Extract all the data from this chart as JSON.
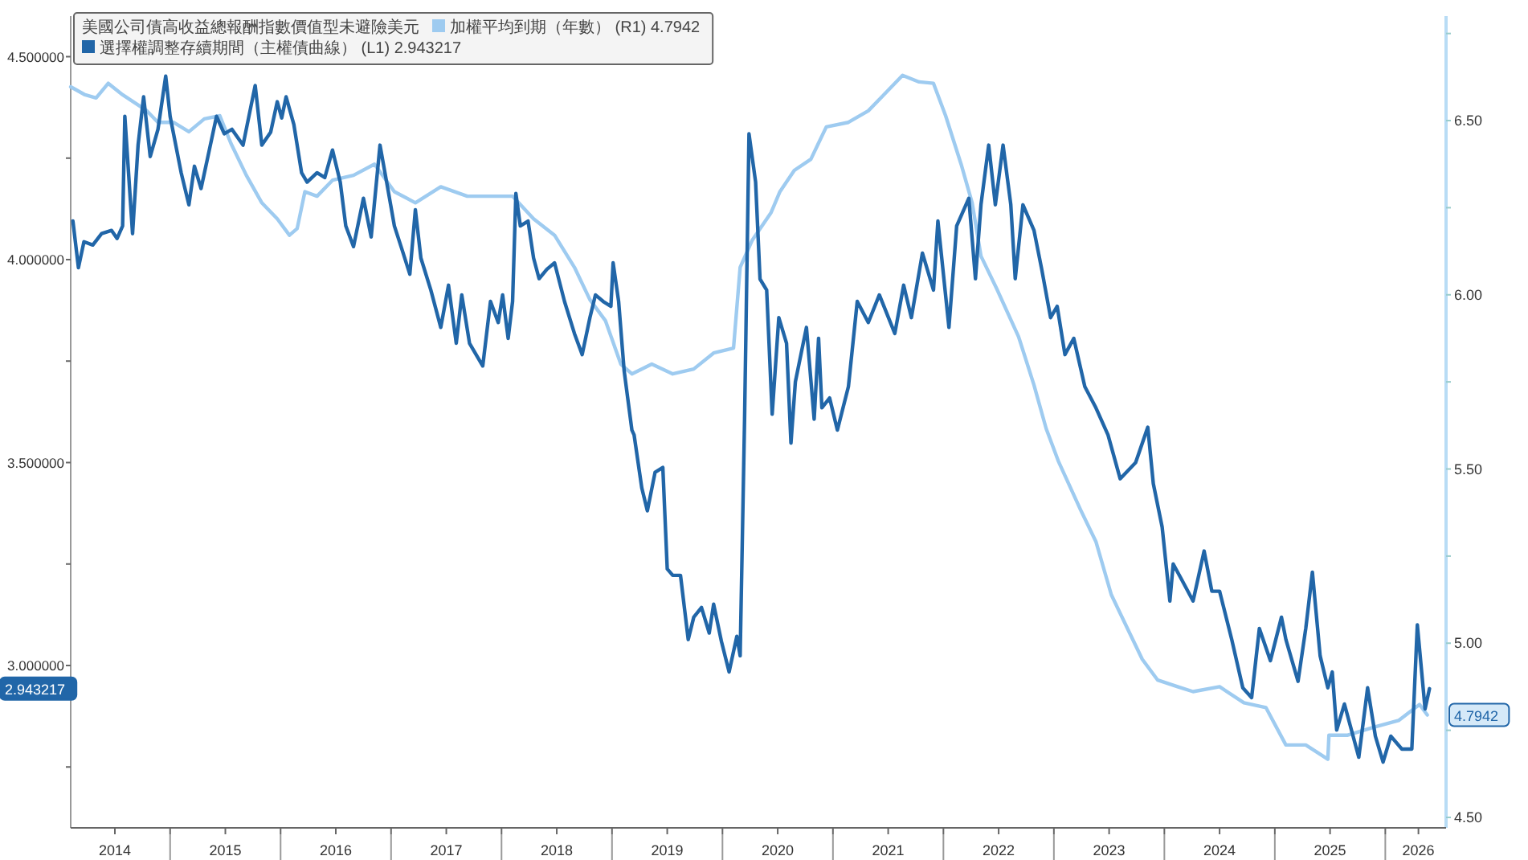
{
  "chart_data": {
    "type": "line",
    "title": "美國公司債高收益總報酬指數價值型未避險美元",
    "legend": "top left",
    "grid": false,
    "xlim": [
      2014.1,
      2026.55
    ],
    "ylim": [
      2.6,
      4.6
    ],
    "y2lim": [
      4.47,
      6.8
    ],
    "xticks": [
      {
        "value": 2014.5,
        "label": "2014"
      },
      {
        "value": 2015,
        "label": null
      },
      {
        "value": 2015.5,
        "label": "2015"
      },
      {
        "value": 2016,
        "label": null
      },
      {
        "value": 2016.5,
        "label": "2016"
      },
      {
        "value": 2017,
        "label": null
      },
      {
        "value": 2017.5,
        "label": "2017"
      },
      {
        "value": 2018,
        "label": null
      },
      {
        "value": 2018.5,
        "label": "2018"
      },
      {
        "value": 2019,
        "label": null
      },
      {
        "value": 2019.5,
        "label": "2019"
      },
      {
        "value": 2020,
        "label": null
      },
      {
        "value": 2020.5,
        "label": "2020"
      },
      {
        "value": 2021,
        "label": null
      },
      {
        "value": 2021.5,
        "label": "2021"
      },
      {
        "value": 2022,
        "label": null
      },
      {
        "value": 2022.5,
        "label": "2022"
      },
      {
        "value": 2023,
        "label": null
      },
      {
        "value": 2023.5,
        "label": "2023"
      },
      {
        "value": 2024,
        "label": null
      },
      {
        "value": 2024.5,
        "label": "2024"
      },
      {
        "value": 2025,
        "label": null
      },
      {
        "value": 2025.5,
        "label": "2025"
      },
      {
        "value": 2026,
        "label": null
      },
      {
        "value": 2026.3,
        "label": "2026"
      }
    ],
    "yticks": [
      {
        "value": 2.75,
        "label": null
      },
      {
        "value": 3,
        "label": "3.000000"
      },
      {
        "value": 3.25,
        "label": null
      },
      {
        "value": 3.5,
        "label": "3.500000"
      },
      {
        "value": 3.75,
        "label": null
      },
      {
        "value": 4,
        "label": "4.000000"
      },
      {
        "value": 4.25,
        "label": null
      },
      {
        "value": 4.5,
        "label": "4.500000"
      }
    ],
    "y2ticks": [
      {
        "value": 4.5,
        "label": "4.50"
      },
      {
        "value": 4.75,
        "label": null
      },
      {
        "value": 5,
        "label": "5.00"
      },
      {
        "value": 5.25,
        "label": null
      },
      {
        "value": 5.5,
        "label": "5.50"
      },
      {
        "value": 5.75,
        "label": null
      },
      {
        "value": 6,
        "label": "6.00"
      },
      {
        "value": 6.25,
        "label": null
      },
      {
        "value": 6.5,
        "label": "6.50"
      },
      {
        "value": 6.75,
        "label": null
      }
    ],
    "annotations": [
      "2.943217",
      "4.7942"
    ],
    "series": [
      {
        "name": "選擇權調整存續期間（主權債曲線）  (L1) 2.943217",
        "color": "#2166a8",
        "axis": "y",
        "x": [
          2014.12,
          2014.17,
          2014.22,
          2014.3,
          2014.38,
          2014.47,
          2014.52,
          2014.57,
          2014.59,
          2014.66,
          2014.71,
          2014.76,
          2014.82,
          2014.89,
          2014.96,
          2015.0,
          2015.1,
          2015.17,
          2015.22,
          2015.28,
          2015.42,
          2015.49,
          2015.56,
          2015.66,
          2015.77,
          2015.83,
          2015.91,
          2015.97,
          2016.01,
          2016.05,
          2016.12,
          2016.19,
          2016.24,
          2016.33,
          2016.4,
          2016.47,
          2016.54,
          2016.59,
          2016.66,
          2016.75,
          2016.82,
          2016.9,
          2016.96,
          2017.03,
          2017.1,
          2017.17,
          2017.22,
          2017.27,
          2017.36,
          2017.45,
          2017.52,
          2017.59,
          2017.64,
          2017.71,
          2017.83,
          2017.9,
          2017.97,
          2018.01,
          2018.06,
          2018.1,
          2018.13,
          2018.17,
          2018.24,
          2018.29,
          2018.34,
          2018.41,
          2018.48,
          2018.57,
          2018.66,
          2018.73,
          2018.8,
          2018.85,
          2018.92,
          2018.99,
          2019.01,
          2019.06,
          2019.11,
          2019.18,
          2019.2,
          2019.27,
          2019.32,
          2019.39,
          2019.46,
          2019.5,
          2019.55,
          2019.62,
          2019.69,
          2019.74,
          2019.81,
          2019.88,
          2019.92,
          2019.99,
          2020.06,
          2020.13,
          2020.16,
          2020.2,
          2020.24,
          2020.3,
          2020.34,
          2020.4,
          2020.45,
          2020.51,
          2020.58,
          2020.62,
          2020.66,
          2020.76,
          2020.83,
          2020.87,
          2020.9,
          2020.97,
          2021.04,
          2021.14,
          2021.22,
          2021.32,
          2021.42,
          2021.56,
          2021.64,
          2021.71,
          2021.81,
          2021.91,
          2021.95,
          2022.05,
          2022.12,
          2022.23,
          2022.29,
          2022.34,
          2022.41,
          2022.47,
          2022.54,
          2022.61,
          2022.65,
          2022.72,
          2022.82,
          2022.89,
          2022.97,
          2023.03,
          2023.1,
          2023.18,
          2023.28,
          2023.38,
          2023.49,
          2023.6,
          2023.74,
          2023.85,
          2023.9,
          2023.98,
          2024.05,
          2024.08,
          2024.16,
          2024.26,
          2024.36,
          2024.43,
          2024.5,
          2024.61,
          2024.71,
          2024.79,
          2024.86,
          2024.96,
          2025.06,
          2025.1,
          2025.21,
          2025.28,
          2025.34,
          2025.41,
          2025.48,
          2025.52,
          2025.56,
          2025.63,
          2025.76,
          2025.84,
          2025.91,
          2025.98,
          2026.05,
          2026.15,
          2026.24,
          2026.29,
          2026.36,
          2026.4
        ],
        "values": [
          4.095,
          3.98,
          4.044,
          4.036,
          4.064,
          4.072,
          4.052,
          4.083,
          4.353,
          4.064,
          4.282,
          4.401,
          4.254,
          4.321,
          4.452,
          4.353,
          4.214,
          4.135,
          4.23,
          4.175,
          4.353,
          4.31,
          4.321,
          4.282,
          4.429,
          4.282,
          4.314,
          4.389,
          4.349,
          4.401,
          4.333,
          4.214,
          4.191,
          4.214,
          4.202,
          4.27,
          4.191,
          4.083,
          4.032,
          4.151,
          4.056,
          4.282,
          4.191,
          4.083,
          4.024,
          3.964,
          4.123,
          4.004,
          3.925,
          3.833,
          3.937,
          3.794,
          3.913,
          3.794,
          3.738,
          3.897,
          3.845,
          3.913,
          3.806,
          3.897,
          4.163,
          4.083,
          4.095,
          4.004,
          3.953,
          3.976,
          3.992,
          3.897,
          3.818,
          3.766,
          3.857,
          3.913,
          3.897,
          3.885,
          3.992,
          3.897,
          3.726,
          3.58,
          3.568,
          3.437,
          3.381,
          3.476,
          3.488,
          3.238,
          3.222,
          3.222,
          3.064,
          3.119,
          3.143,
          3.08,
          3.151,
          3.06,
          2.984,
          3.072,
          3.024,
          3.607,
          4.31,
          4.191,
          3.952,
          3.925,
          3.619,
          3.857,
          3.794,
          3.548,
          3.699,
          3.833,
          3.607,
          3.806,
          3.635,
          3.659,
          3.58,
          3.687,
          3.897,
          3.845,
          3.913,
          3.818,
          3.937,
          3.857,
          4.016,
          3.925,
          4.095,
          3.833,
          4.083,
          4.151,
          3.953,
          4.135,
          4.282,
          4.135,
          4.282,
          4.135,
          3.953,
          4.135,
          4.072,
          3.976,
          3.857,
          3.885,
          3.766,
          3.806,
          3.687,
          3.635,
          3.568,
          3.46,
          3.5,
          3.587,
          3.448,
          3.341,
          3.159,
          3.25,
          3.21,
          3.159,
          3.282,
          3.183,
          3.183,
          3.064,
          2.945,
          2.921,
          3.091,
          3.012,
          3.119,
          3.064,
          2.961,
          3.091,
          3.23,
          3.024,
          2.945,
          2.984,
          2.841,
          2.905,
          2.774,
          2.945,
          2.826,
          2.762,
          2.826,
          2.794,
          2.794,
          3.1,
          2.893,
          2.943
        ]
      },
      {
        "name": "加權平均到期（年數）  (R1) 4.7942",
        "color": "#9ecbf0",
        "axis": "y2",
        "x": [
          2014.1,
          2014.23,
          2014.33,
          2014.44,
          2014.57,
          2014.68,
          2014.79,
          2014.89,
          2015.03,
          2015.17,
          2015.31,
          2015.45,
          2015.55,
          2015.69,
          2015.83,
          2015.97,
          2016.08,
          2016.15,
          2016.22,
          2016.33,
          2016.47,
          2016.66,
          2016.85,
          2017.03,
          2017.22,
          2017.45,
          2017.69,
          2017.92,
          2018.1,
          2018.29,
          2018.48,
          2018.66,
          2018.8,
          2018.94,
          2019.08,
          2019.18,
          2019.36,
          2019.55,
          2019.74,
          2019.92,
          2020.1,
          2020.16,
          2020.27,
          2020.44,
          2020.52,
          2020.65,
          2020.8,
          2020.94,
          2021.14,
          2021.32,
          2021.46,
          2021.63,
          2021.78,
          2021.91,
          2022.02,
          2022.16,
          2022.26,
          2022.34,
          2022.48,
          2022.68,
          2022.82,
          2022.93,
          2023.04,
          2023.24,
          2023.38,
          2023.52,
          2023.66,
          2023.8,
          2023.94,
          2024.12,
          2024.26,
          2024.5,
          2024.72,
          2024.92,
          2025.1,
          2025.28,
          2025.48,
          2025.49,
          2025.66,
          2025.9,
          2026.12,
          2026.31,
          2026.38
        ],
        "values": [
          6.597,
          6.574,
          6.565,
          6.607,
          6.574,
          6.551,
          6.528,
          6.495,
          6.495,
          6.468,
          6.505,
          6.514,
          6.435,
          6.343,
          6.264,
          6.218,
          6.171,
          6.19,
          6.296,
          6.283,
          6.329,
          6.343,
          6.375,
          6.296,
          6.264,
          6.31,
          6.283,
          6.283,
          6.283,
          6.218,
          6.171,
          6.079,
          5.986,
          5.926,
          5.801,
          5.773,
          5.801,
          5.773,
          5.787,
          5.833,
          5.847,
          6.079,
          6.157,
          6.236,
          6.296,
          6.357,
          6.389,
          6.482,
          6.495,
          6.528,
          6.574,
          6.63,
          6.611,
          6.607,
          6.514,
          6.375,
          6.264,
          6.111,
          6.019,
          5.88,
          5.741,
          5.616,
          5.523,
          5.384,
          5.292,
          5.139,
          5.046,
          4.954,
          4.894,
          4.875,
          4.861,
          4.875,
          4.829,
          4.815,
          4.708,
          4.708,
          4.667,
          4.736,
          4.736,
          4.759,
          4.778,
          4.824,
          4.794
        ]
      }
    ]
  }
}
